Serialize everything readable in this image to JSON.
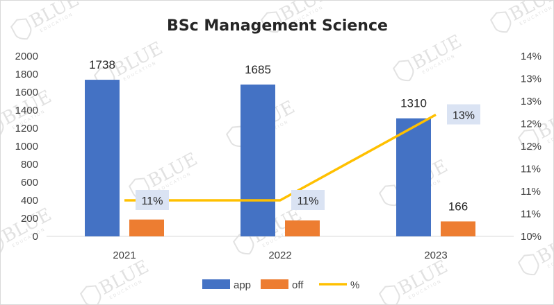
{
  "chart_data": {
    "type": "bar",
    "title": "BSc Management Science",
    "categories": [
      "2021",
      "2022",
      "2023"
    ],
    "series": [
      {
        "name": "app",
        "kind": "bar",
        "axis": "left",
        "color": "#4472C4",
        "values": [
          1738,
          1685,
          1310
        ]
      },
      {
        "name": "off",
        "kind": "bar",
        "axis": "left",
        "color": "#ED7D31",
        "values": [
          187,
          177,
          166
        ]
      },
      {
        "name": "%",
        "kind": "line",
        "axis": "right",
        "color": "#FFC000",
        "values": [
          0.108,
          0.108,
          0.127
        ],
        "value_labels": [
          "11%",
          "11%",
          "13%"
        ]
      }
    ],
    "left_axis": {
      "min": 0,
      "max": 2000,
      "step": 200,
      "tick_labels": [
        "0",
        "200",
        "400",
        "600",
        "800",
        "1000",
        "1200",
        "1400",
        "1600",
        "1800",
        "2000"
      ]
    },
    "right_axis": {
      "min": 0.1,
      "max": 0.14,
      "step": 0.005,
      "tick_labels": [
        "10%",
        "11%",
        "11%",
        "11%",
        "12%",
        "12%",
        "13%",
        "13%",
        "14%"
      ]
    },
    "legend": {
      "position": "bottom",
      "entries": [
        "app",
        "off",
        "%"
      ]
    },
    "grid": false
  },
  "watermark": {
    "text": "BLUE",
    "subtext": "EDUCATION"
  }
}
